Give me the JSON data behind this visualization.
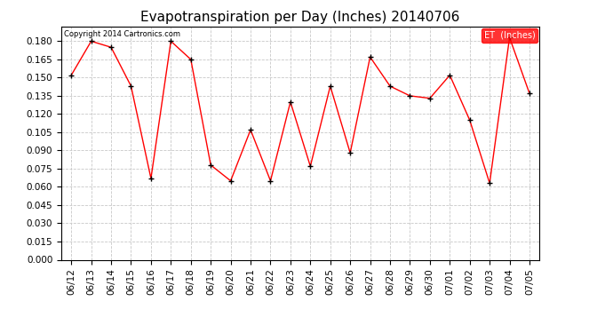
{
  "title": "Evapotranspiration per Day (Inches) 20140706",
  "copyright_text": "Copyright 2014 Cartronics.com",
  "legend_label": "ET  (Inches)",
  "dates": [
    "06/12",
    "06/13",
    "06/14",
    "06/15",
    "06/16",
    "06/17",
    "06/18",
    "06/19",
    "06/20",
    "06/21",
    "06/22",
    "06/23",
    "06/24",
    "06/25",
    "06/26",
    "06/27",
    "06/28",
    "06/29",
    "06/30",
    "07/01",
    "07/02",
    "07/03",
    "07/04",
    "07/05"
  ],
  "values": [
    0.152,
    0.18,
    0.175,
    0.143,
    0.067,
    0.18,
    0.165,
    0.078,
    0.065,
    0.107,
    0.065,
    0.13,
    0.077,
    0.143,
    0.088,
    0.167,
    0.143,
    0.135,
    0.133,
    0.152,
    0.115,
    0.063,
    0.183,
    0.137
  ],
  "ylim_min": 0.0,
  "ylim_max": 0.192,
  "yticks": [
    0.0,
    0.015,
    0.03,
    0.045,
    0.06,
    0.075,
    0.09,
    0.105,
    0.12,
    0.135,
    0.15,
    0.165,
    0.18
  ],
  "line_color": "red",
  "marker": "+",
  "marker_color": "black",
  "bg_color": "#ffffff",
  "grid_color": "#c8c8c8",
  "legend_bg": "red",
  "legend_text_color": "white",
  "title_fontsize": 11,
  "copyright_fontsize": 6,
  "tick_fontsize": 7.5
}
